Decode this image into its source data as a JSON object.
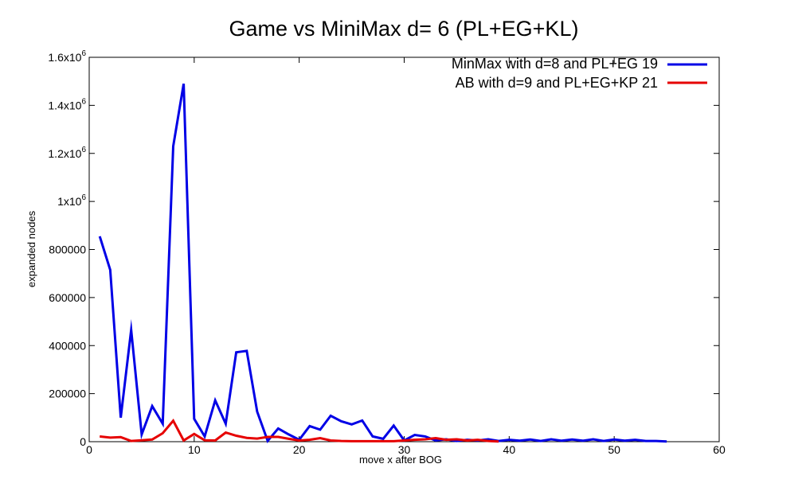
{
  "chart_data": {
    "type": "line",
    "title": "Game vs MiniMax d= 6 (PL+EG+KL)",
    "xlabel": "move x after BOG",
    "ylabel": "expanded nodes",
    "xlim": [
      0,
      60
    ],
    "ylim": [
      0,
      1600000
    ],
    "x_ticks": [
      0,
      10,
      20,
      30,
      40,
      50,
      60
    ],
    "y_ticks": [
      {
        "value": 0,
        "label": "0"
      },
      {
        "value": 200000,
        "label": "200000"
      },
      {
        "value": 400000,
        "label": "400000"
      },
      {
        "value": 600000,
        "label": "600000"
      },
      {
        "value": 800000,
        "label": "800000"
      },
      {
        "value": 1000000,
        "mantissa": "1x10",
        "exp": "6"
      },
      {
        "value": 1200000,
        "mantissa": "1.2x10",
        "exp": "6"
      },
      {
        "value": 1400000,
        "mantissa": "1.4x10",
        "exp": "6"
      },
      {
        "value": 1600000,
        "mantissa": "1.6x10",
        "exp": "6"
      }
    ],
    "grid": false,
    "legend_position": "top-right",
    "series": [
      {
        "name": "MinMax with d=8 and PL+EG 19",
        "color": "#0000e6",
        "x": [
          1,
          2,
          3,
          4,
          5,
          6,
          7,
          8,
          9,
          10,
          11,
          12,
          13,
          14,
          15,
          16,
          17,
          18,
          19,
          20,
          21,
          22,
          23,
          24,
          25,
          26,
          27,
          28,
          29,
          30,
          31,
          32,
          33,
          34,
          35,
          36,
          37,
          38,
          39,
          40,
          41,
          42,
          43,
          44,
          45,
          46,
          47,
          48,
          49,
          50,
          51,
          52,
          53,
          54,
          55
        ],
        "y": [
          855000,
          715000,
          100000,
          465000,
          30000,
          148000,
          75000,
          1230000,
          1490000,
          95000,
          22000,
          172000,
          75000,
          372000,
          378000,
          125000,
          3000,
          55000,
          30000,
          8000,
          65000,
          50000,
          108000,
          85000,
          72000,
          88000,
          22000,
          12000,
          67000,
          5000,
          28000,
          22000,
          5000,
          10000,
          3000,
          8000,
          5000,
          10000,
          3000,
          8000,
          4000,
          9000,
          3000,
          10000,
          4000,
          9000,
          4000,
          10000,
          3000,
          9000,
          4000,
          8000,
          3000,
          3000,
          1000
        ]
      },
      {
        "name": "AB with d=9 and PL+EG+KP 21",
        "color": "#e60000",
        "x": [
          1,
          2,
          3,
          4,
          5,
          6,
          7,
          8,
          9,
          10,
          11,
          12,
          13,
          14,
          15,
          16,
          17,
          18,
          19,
          20,
          21,
          22,
          23,
          24,
          25,
          26,
          27,
          28,
          29,
          30,
          31,
          32,
          33,
          34,
          35,
          36,
          37,
          38,
          39
        ],
        "y": [
          22000,
          17000,
          19000,
          3000,
          6000,
          9000,
          35000,
          87000,
          5000,
          32000,
          6000,
          5000,
          38000,
          25000,
          16000,
          13000,
          20000,
          20000,
          12000,
          5000,
          8000,
          15000,
          5000,
          3000,
          2000,
          2000,
          2000,
          2000,
          2000,
          5000,
          8000,
          10000,
          15000,
          8000,
          10000,
          5000,
          8000,
          3000,
          1000
        ]
      }
    ]
  }
}
